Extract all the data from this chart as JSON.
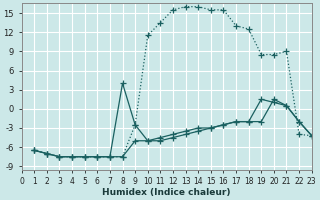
{
  "xlabel": "Humidex (Indice chaleur)",
  "bg_color": "#cce8e8",
  "grid_color": "#ffffff",
  "line_color": "#1a6060",
  "xlim": [
    0,
    23
  ],
  "ylim": [
    -9.5,
    16.5
  ],
  "yticks": [
    -9,
    -6,
    -3,
    0,
    3,
    6,
    9,
    12,
    15
  ],
  "xticks": [
    0,
    1,
    2,
    3,
    4,
    5,
    6,
    7,
    8,
    9,
    10,
    11,
    12,
    13,
    14,
    15,
    16,
    17,
    18,
    19,
    20,
    21,
    22,
    23
  ],
  "series": [
    {
      "linestyle": "dotted",
      "x": [
        1,
        2,
        3,
        4,
        5,
        6,
        7,
        8,
        9,
        10,
        11,
        12,
        13,
        14,
        15,
        16,
        17,
        18,
        19,
        20,
        21,
        22,
        23
      ],
      "y": [
        -6.5,
        -7.0,
        -7.5,
        -7.5,
        -7.5,
        -7.5,
        -7.5,
        -7.5,
        -2.5,
        11.5,
        13.5,
        15.5,
        16.0,
        16.0,
        15.5,
        15.5,
        13.0,
        12.5,
        8.5,
        8.5,
        9.0,
        -4.0,
        -4.2
      ]
    },
    {
      "linestyle": "solid",
      "x": [
        1,
        2,
        3,
        4,
        5,
        6,
        7,
        8,
        9,
        10,
        11,
        12,
        13,
        14,
        15,
        16,
        17,
        18,
        19,
        20,
        21,
        22,
        23
      ],
      "y": [
        -6.5,
        -7.0,
        -7.5,
        -7.5,
        -7.5,
        -7.5,
        -7.5,
        4.0,
        -2.5,
        -5.0,
        -5.0,
        -4.5,
        -4.0,
        -3.5,
        -3.0,
        -2.5,
        -2.0,
        -2.0,
        1.5,
        1.0,
        0.5,
        -2.0,
        -4.2
      ]
    },
    {
      "linestyle": "solid",
      "x": [
        1,
        2,
        3,
        4,
        5,
        6,
        7,
        8,
        9,
        10,
        11,
        12,
        13,
        14,
        15,
        16,
        17,
        18,
        19,
        20,
        21,
        22,
        23
      ],
      "y": [
        -6.5,
        -7.0,
        -7.5,
        -7.5,
        -7.5,
        -7.5,
        -7.5,
        -7.5,
        -5.0,
        -5.0,
        -4.5,
        -4.0,
        -3.5,
        -3.0,
        -3.0,
        -2.5,
        -2.0,
        -2.0,
        -2.0,
        1.5,
        0.5,
        -2.0,
        -4.2
      ]
    }
  ]
}
